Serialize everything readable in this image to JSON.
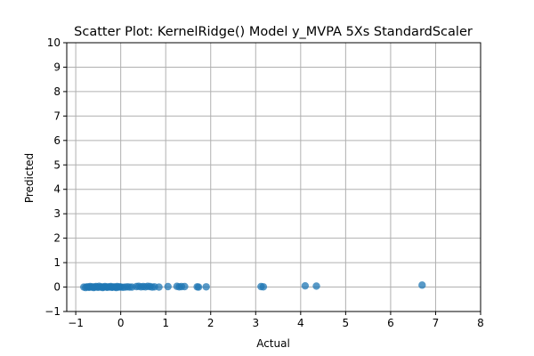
{
  "chart_data": {
    "type": "scatter",
    "title": "Scatter Plot: KernelRidge() Model y_MVPA 5Xs StandardScaler",
    "xlabel": "Actual",
    "ylabel": "Predicted",
    "xlim": [
      -1.2,
      8
    ],
    "ylim": [
      -1,
      10
    ],
    "xticks": [
      -1,
      0,
      1,
      2,
      3,
      4,
      5,
      6,
      7,
      8
    ],
    "yticks": [
      -1,
      0,
      1,
      2,
      3,
      4,
      5,
      6,
      7,
      8,
      9,
      10
    ],
    "grid": true,
    "marker_color": "#1f77b4",
    "marker_alpha": 0.75,
    "points": {
      "x": [
        -0.82,
        -0.78,
        -0.75,
        -0.72,
        -0.7,
        -0.68,
        -0.65,
        -0.62,
        -0.6,
        -0.58,
        -0.55,
        -0.53,
        -0.5,
        -0.48,
        -0.45,
        -0.42,
        -0.4,
        -0.38,
        -0.35,
        -0.32,
        -0.3,
        -0.28,
        -0.25,
        -0.22,
        -0.2,
        -0.18,
        -0.15,
        -0.12,
        -0.1,
        -0.08,
        -0.05,
        -0.02,
        0.0,
        0.05,
        0.1,
        0.15,
        0.2,
        0.25,
        0.35,
        0.4,
        0.45,
        0.5,
        0.55,
        0.6,
        0.65,
        0.7,
        0.75,
        0.85,
        1.05,
        1.25,
        1.3,
        1.35,
        1.42,
        1.7,
        1.73,
        1.9,
        3.12,
        3.17,
        4.1,
        4.35,
        6.7
      ],
      "y": [
        0.0,
        -0.02,
        0.01,
        0.0,
        -0.01,
        0.02,
        0.0,
        0.01,
        -0.02,
        0.0,
        0.02,
        0.0,
        -0.01,
        0.03,
        0.0,
        0.01,
        -0.02,
        0.0,
        0.02,
        0.0,
        -0.01,
        0.01,
        0.0,
        0.02,
        -0.01,
        0.0,
        0.01,
        0.0,
        -0.02,
        0.02,
        0.0,
        0.01,
        0.0,
        -0.01,
        0.0,
        0.01,
        0.0,
        0.0,
        0.02,
        0.03,
        0.01,
        0.02,
        0.01,
        0.03,
        0.02,
        0.0,
        0.01,
        0.0,
        0.02,
        0.03,
        0.01,
        0.02,
        0.02,
        0.01,
        0.0,
        0.01,
        0.02,
        0.01,
        0.05,
        0.04,
        0.08
      ]
    }
  }
}
